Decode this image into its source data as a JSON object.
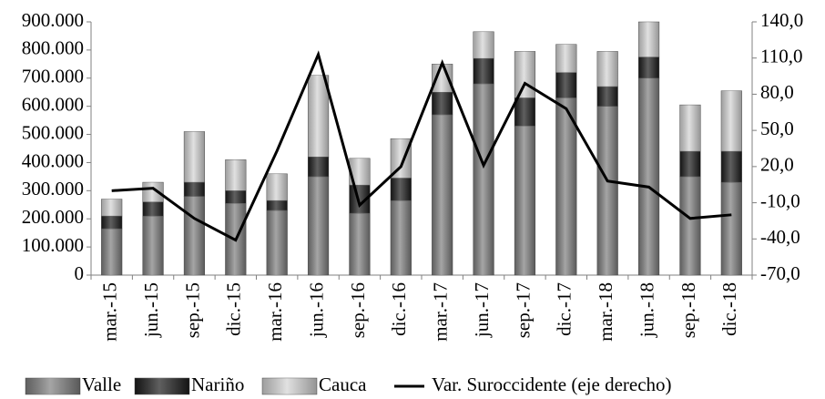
{
  "chart_data": {
    "type": "bar",
    "stacked": true,
    "categories": [
      "mar.-15",
      "jun.-15",
      "sep.-15",
      "dic.-15",
      "mar.-16",
      "jun.-16",
      "sep.-16",
      "dic.-16",
      "mar.-17",
      "jun.-17",
      "sep.-17",
      "dic.-17",
      "mar.-18",
      "jun.-18",
      "sep.-18",
      "dic.-18"
    ],
    "series": [
      {
        "name": "Valle",
        "color": "#7f7f7f",
        "values": [
          165000,
          210000,
          280000,
          255000,
          230000,
          350000,
          220000,
          265000,
          570000,
          680000,
          530000,
          630000,
          600000,
          700000,
          350000,
          330000
        ]
      },
      {
        "name": "Nariño",
        "color": "#1c1c1c",
        "values": [
          45000,
          50000,
          50000,
          45000,
          35000,
          70000,
          100000,
          80000,
          80000,
          90000,
          100000,
          90000,
          70000,
          75000,
          90000,
          110000
        ]
      },
      {
        "name": "Cauca",
        "color": "#d4d4d4",
        "values": [
          60000,
          70000,
          180000,
          110000,
          95000,
          290000,
          95000,
          140000,
          100000,
          95000,
          165000,
          100000,
          125000,
          125000,
          165000,
          215000
        ]
      },
      {
        "name": "Var. Suroccidente (eje derecho)",
        "color": "#000000",
        "type": "line",
        "axis": "y2",
        "values": [
          0,
          2,
          -23,
          -41,
          33,
          113,
          -12,
          20,
          106,
          21,
          89,
          68,
          8,
          3,
          -23,
          -20
        ]
      }
    ],
    "ylim": [
      0,
      900000
    ],
    "yticks": [
      0,
      {
        "value": 100000,
        "label": "100.000"
      },
      {
        "value": 200000,
        "label": "200.000"
      },
      {
        "value": 300000,
        "label": "300.000"
      },
      {
        "value": 400000,
        "label": "400.000"
      },
      {
        "value": 500000,
        "label": "500.000"
      },
      {
        "value": 600000,
        "label": "600.000"
      },
      {
        "value": 700000,
        "label": "700.000"
      },
      {
        "value": 800000,
        "label": "800.000"
      },
      {
        "value": 900000,
        "label": "900.000"
      }
    ],
    "y2lim": [
      -70,
      140
    ],
    "y2ticks": [
      {
        "value": -70,
        "label": "-70,0"
      },
      {
        "value": -40,
        "label": "-40,0"
      },
      {
        "value": -10,
        "label": "-10,0"
      },
      {
        "value": 20,
        "label": "20,0"
      },
      {
        "value": 50,
        "label": "50,0"
      },
      {
        "value": 80,
        "label": "80,0"
      },
      {
        "value": 110,
        "label": "110,0"
      },
      {
        "value": 140,
        "label": "140,0"
      }
    ],
    "legend": "bottom"
  }
}
